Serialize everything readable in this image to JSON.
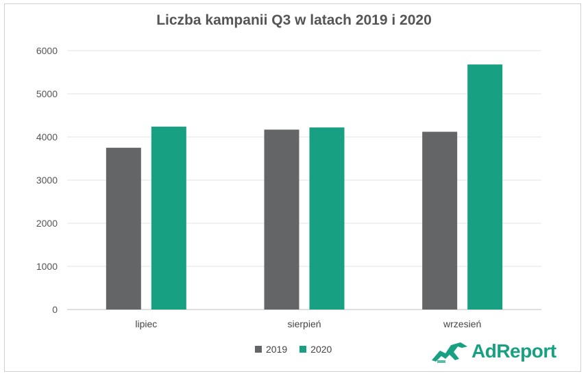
{
  "chart_data": {
    "type": "bar",
    "title": "Liczba kampanii Q3 w latach 2019 i 2020",
    "xlabel": "",
    "ylabel": "",
    "categories": [
      "lipiec",
      "sierpień",
      "wrzesień"
    ],
    "series": [
      {
        "name": "2019",
        "values": [
          3750,
          4170,
          4120
        ],
        "color": "#646566"
      },
      {
        "name": "2020",
        "values": [
          4240,
          4220,
          5680
        ],
        "color": "#17a082"
      }
    ],
    "ylim": [
      0,
      6000
    ],
    "yticks": [
      "0",
      "1000",
      "2000",
      "3000",
      "4000",
      "5000",
      "6000"
    ],
    "grid": true,
    "legend_position": "bottom"
  },
  "logo": {
    "text": "AdReport",
    "icon": "leaping-animal-logo-icon",
    "color": "#17a082"
  }
}
